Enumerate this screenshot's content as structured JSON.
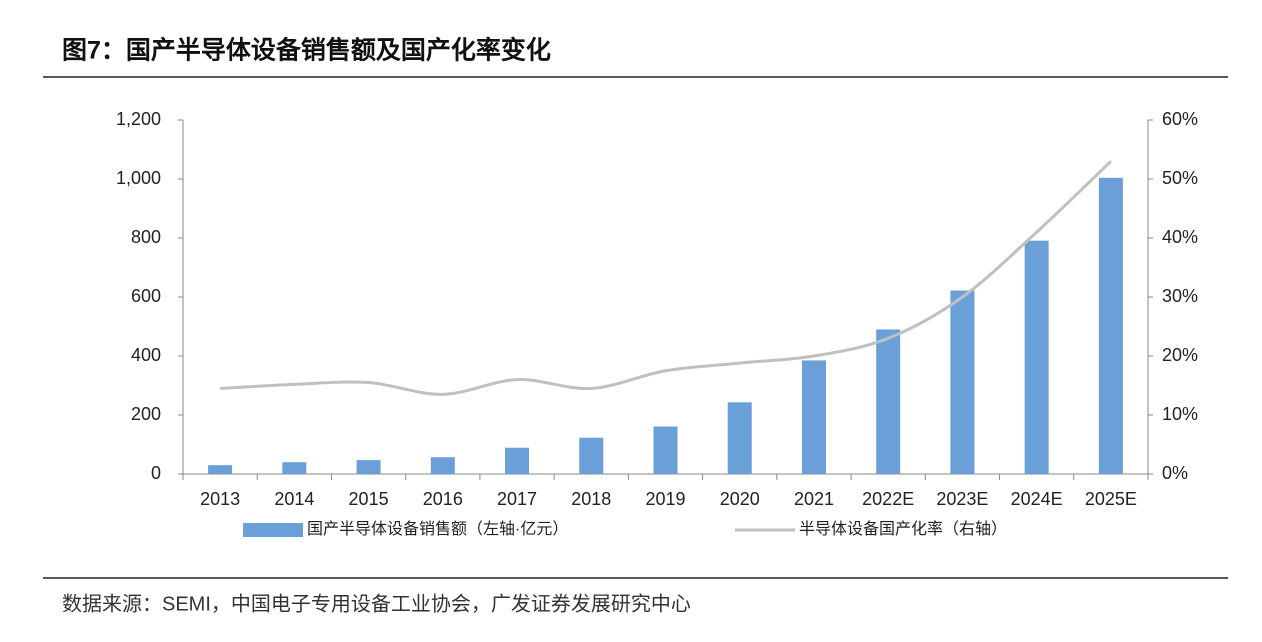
{
  "chart_data": {
    "type": "bar_line",
    "title": "图7：国产半导体设备销售额及国产化率变化",
    "source": "数据来源：SEMI，中国电子专用设备工业协会，广发证券发展研究中心",
    "categories": [
      "2013",
      "2014",
      "2015",
      "2016",
      "2017",
      "2018",
      "2019",
      "2020",
      "2021",
      "2022E",
      "2023E",
      "2024E",
      "2025E"
    ],
    "series": [
      {
        "name": "国产半导体设备销售额（左轴·亿元）",
        "type": "bar",
        "color": "#6a9fd8",
        "values": [
          30,
          40,
          47,
          57,
          89,
          123,
          161,
          243,
          385,
          490,
          622,
          791,
          1004
        ]
      },
      {
        "name": "半导体设备国产化率（右轴）",
        "type": "line",
        "axis": "y2",
        "color": "#c0c0c0",
        "values": [
          14.5,
          15.2,
          15.5,
          13.5,
          16,
          14.5,
          17.5,
          18.8,
          20,
          23,
          30,
          41,
          53
        ]
      }
    ],
    "ylim": [
      0,
      1200
    ],
    "yticks": [
      0,
      200,
      400,
      600,
      800,
      {
        "value": 1000,
        "label": "1,000"
      },
      {
        "value": 1200,
        "label": "1,200"
      }
    ],
    "y2lim": [
      0,
      60
    ],
    "y2ticks": [
      {
        "value": 0,
        "label": "0%"
      },
      {
        "value": 10,
        "label": "10%"
      },
      {
        "value": 20,
        "label": "20%"
      },
      {
        "value": 30,
        "label": "30%"
      },
      {
        "value": 40,
        "label": "40%"
      },
      {
        "value": 50,
        "label": "50%"
      },
      {
        "value": 60,
        "label": "60%"
      }
    ],
    "grid": false
  }
}
